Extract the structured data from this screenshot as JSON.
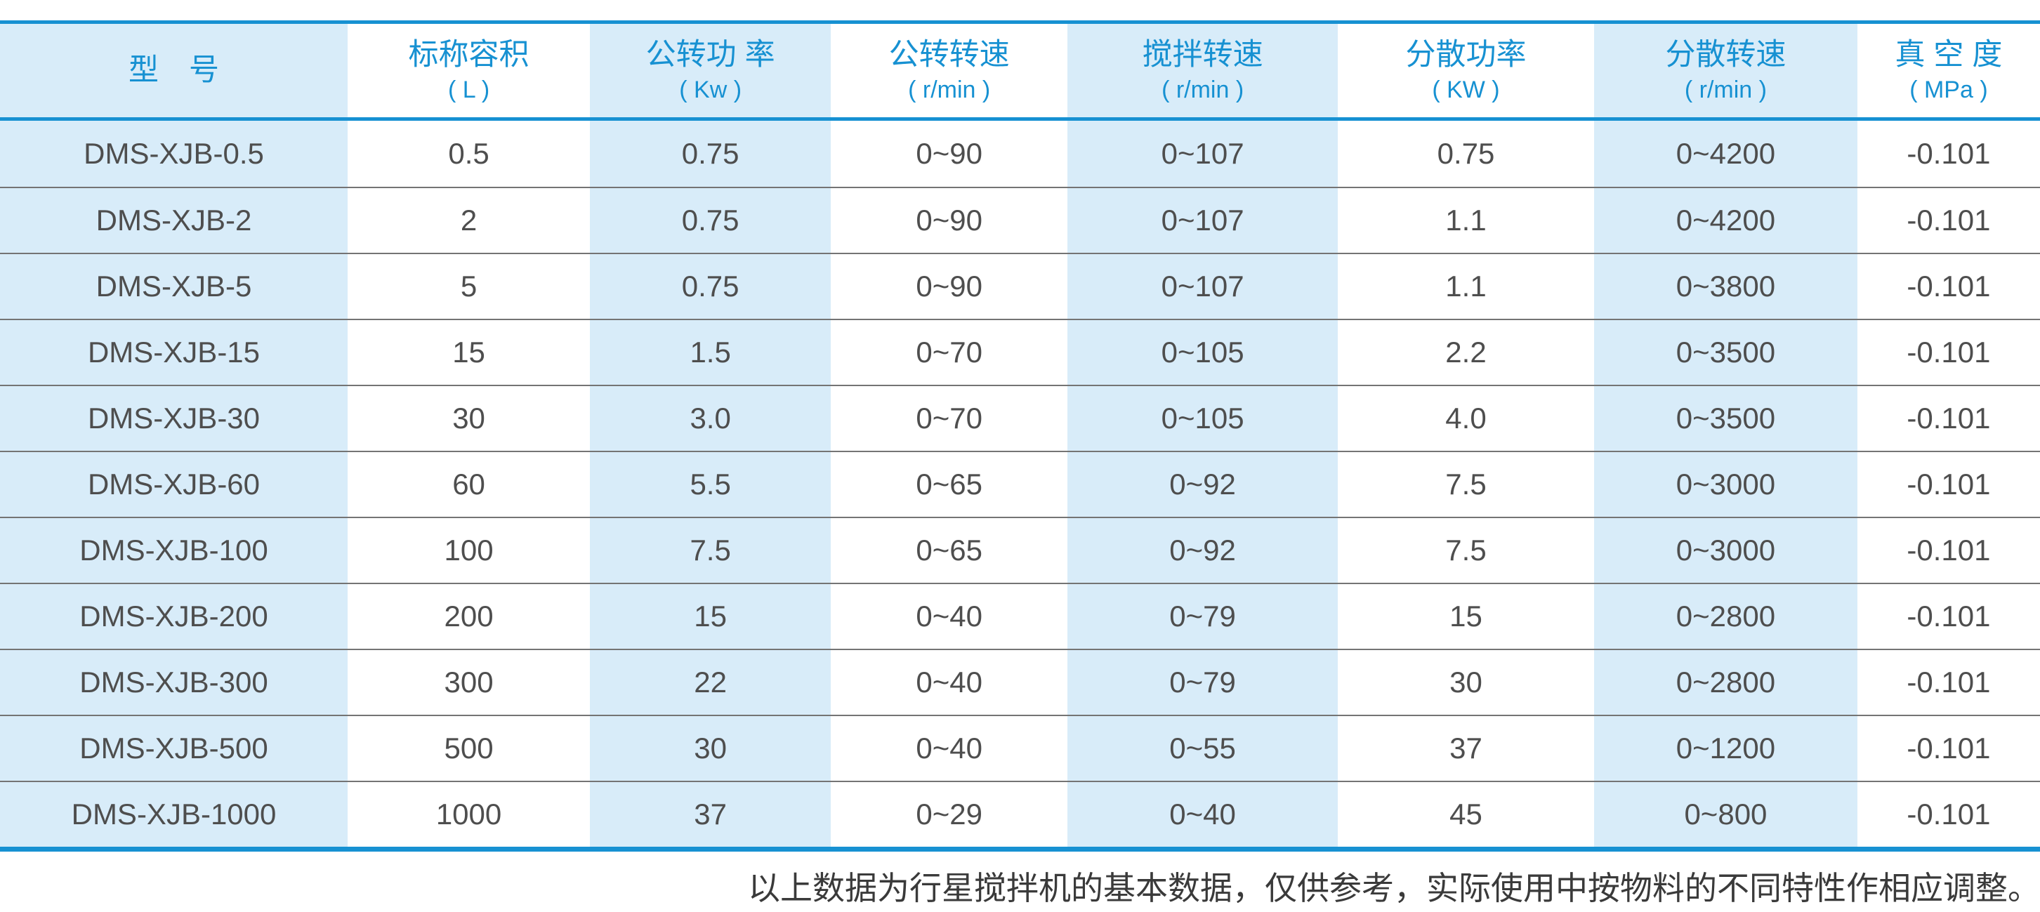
{
  "table": {
    "columns": [
      {
        "label": "型　号",
        "unit": ""
      },
      {
        "label": "标称容积",
        "unit": "( L )"
      },
      {
        "label": "公转功 率",
        "unit": "( Kw )"
      },
      {
        "label": "公转转速",
        "unit": "( r/min )"
      },
      {
        "label": "搅拌转速",
        "unit": "( r/min )"
      },
      {
        "label": "分散功率",
        "unit": "( KW )"
      },
      {
        "label": "分散转速",
        "unit": "( r/min )"
      },
      {
        "label": "真 空 度",
        "unit": "( MPa )"
      }
    ],
    "rows": [
      {
        "model": "DMS-XJB-0.5",
        "values": [
          "0.5",
          "0.75",
          "0~90",
          "0~107",
          "0.75",
          "0~4200",
          "-0.101"
        ]
      },
      {
        "model": "DMS-XJB-2",
        "values": [
          "2",
          "0.75",
          "0~90",
          "0~107",
          "1.1",
          "0~4200",
          "-0.101"
        ]
      },
      {
        "model": "DMS-XJB-5",
        "values": [
          "5",
          "0.75",
          "0~90",
          "0~107",
          "1.1",
          "0~3800",
          "-0.101"
        ]
      },
      {
        "model": "DMS-XJB-15",
        "values": [
          "15",
          "1.5",
          "0~70",
          "0~105",
          "2.2",
          "0~3500",
          "-0.101"
        ]
      },
      {
        "model": "DMS-XJB-30",
        "values": [
          "30",
          "3.0",
          "0~70",
          "0~105",
          "4.0",
          "0~3500",
          "-0.101"
        ]
      },
      {
        "model": "DMS-XJB-60",
        "values": [
          "60",
          "5.5",
          "0~65",
          "0~92",
          "7.5",
          "0~3000",
          "-0.101"
        ]
      },
      {
        "model": "DMS-XJB-100",
        "values": [
          "100",
          "7.5",
          "0~65",
          "0~92",
          "7.5",
          "0~3000",
          "-0.101"
        ]
      },
      {
        "model": "DMS-XJB-200",
        "values": [
          "200",
          "15",
          "0~40",
          "0~79",
          "15",
          "0~2800",
          "-0.101"
        ]
      },
      {
        "model": "DMS-XJB-300",
        "values": [
          "300",
          "22",
          "0~40",
          "0~79",
          "30",
          "0~2800",
          "-0.101"
        ]
      },
      {
        "model": "DMS-XJB-500",
        "values": [
          "500",
          "30",
          "0~40",
          "0~55",
          "37",
          "0~1200",
          "-0.101"
        ]
      },
      {
        "model": "DMS-XJB-1000",
        "values": [
          "1000",
          "37",
          "0~29",
          "0~40",
          "45",
          "0~800",
          "-0.101"
        ]
      }
    ]
  },
  "footer": {
    "note": "以上数据为行星搅拌机的基本数据，仅供参考，实际使用中按物料的不同特性作相应调整。"
  },
  "colors": {
    "accent_blue": "#1791d2",
    "band_light_blue": "#d8ecf9",
    "data_text": "#4e4e4e",
    "separator_gray": "#747474",
    "note_text": "#3a3a3a"
  }
}
